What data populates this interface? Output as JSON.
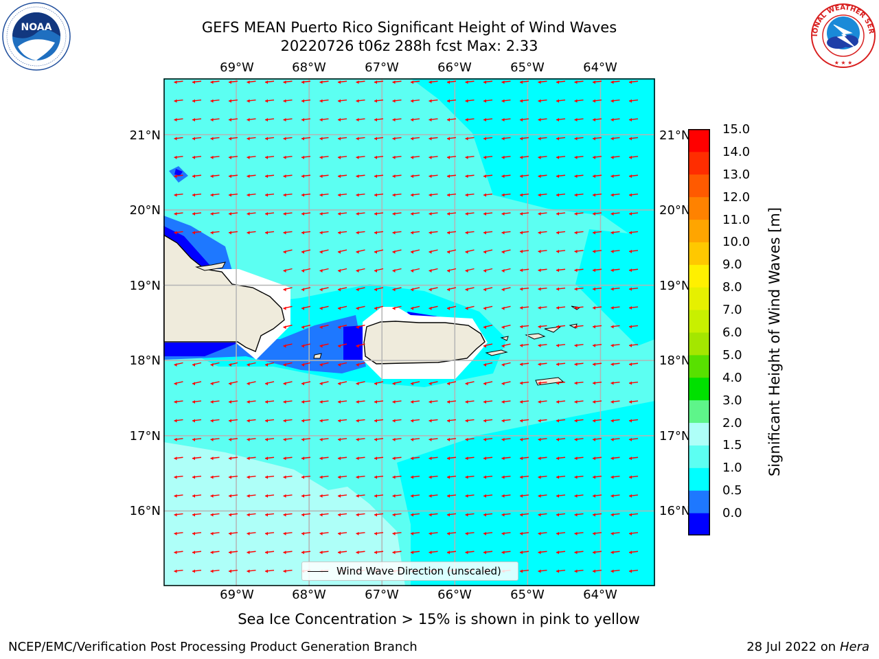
{
  "title": {
    "line1": "GEFS MEAN Puerto Rico Significant Height of Wind Waves",
    "line2": "20220726 t06z 288h fcst   Max: 2.33"
  },
  "logos": {
    "left": {
      "name": "noaa-logo",
      "text": "NOAA",
      "ring_text": "NATIONAL OCEANIC AND ATMOSPHERIC ADMINISTRATION · U.S. DEPARTMENT OF COMMERCE"
    },
    "right": {
      "name": "nws-logo",
      "ring_text": "NATIONAL WEATHER SERVICE"
    }
  },
  "axes": {
    "lon_ticks": [
      "69°W",
      "68°W",
      "67°W",
      "66°W",
      "65°W",
      "64°W"
    ],
    "lon_values": [
      -69,
      -68,
      -67,
      -66,
      -65,
      -64
    ],
    "lat_ticks": [
      "21°N",
      "20°N",
      "19°N",
      "18°N",
      "17°N",
      "16°N"
    ],
    "lat_values": [
      21,
      20,
      19,
      18,
      17,
      16
    ],
    "lon_range": [
      -70,
      -63.25
    ],
    "lat_range": [
      15.0,
      21.75
    ]
  },
  "colorbar": {
    "label": "Significant Height of Wind Waves [m]",
    "ticks": [
      "15.0",
      "14.0",
      "13.0",
      "12.0",
      "11.0",
      "10.0",
      "9.0",
      "8.0",
      "7.0",
      "6.0",
      "5.0",
      "4.0",
      "3.0",
      "2.0",
      "1.5",
      "1.0",
      "0.5",
      "0.0"
    ],
    "colors_bottom_to_top": [
      "#0000ff",
      "#1e78ff",
      "#00ffff",
      "#5cfff2",
      "#aefff8",
      "#5ef58a",
      "#00e000",
      "#58e000",
      "#a4e600",
      "#c8f000",
      "#e6f000",
      "#fff000",
      "#ffc800",
      "#ffa500",
      "#ff8200",
      "#ff5a00",
      "#ff2d00",
      "#ff0000"
    ]
  },
  "legend": {
    "label": "Wind Wave Direction (unscaled)"
  },
  "subtitle": "Sea Ice Concentration > 15% is shown in pink to yellow",
  "footer": {
    "left": "NCEP/EMC/Verification Post Processing Product Generation Branch",
    "right_date": "28 Jul 2022 on",
    "right_host": "Hera"
  },
  "map_colors": {
    "level_0_0p5": "#0000ff",
    "level_0p5_1": "#1e78ff",
    "level_1_1p5": "#00ffff",
    "level_1p5_2": "#5cfff2",
    "level_2_3": "#aefff8",
    "land": "#efebdc",
    "arrows": "#ff0000",
    "grid": "#b4b4b4"
  },
  "wave_direction": "westward"
}
